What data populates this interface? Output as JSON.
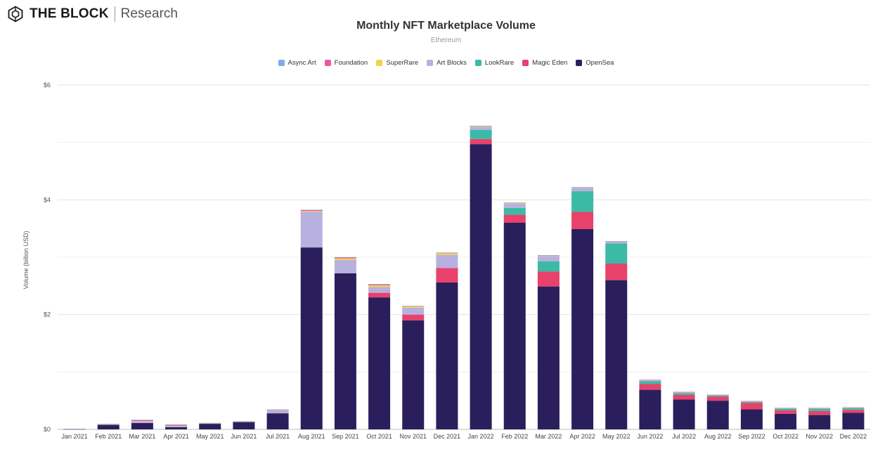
{
  "brand": {
    "name": "THE BLOCK",
    "sub": "Research"
  },
  "chart_data": {
    "type": "bar",
    "stacked": true,
    "title": "Monthly NFT Marketplace Volume",
    "subtitle": "Ethereum",
    "xlabel": "",
    "ylabel": "Volume (billion USD)",
    "ylim": [
      0,
      6
    ],
    "yticks": [
      0,
      2,
      4,
      6
    ],
    "ytick_labels": [
      "$0",
      "$2",
      "$4",
      "$6"
    ],
    "grid": true,
    "legend_position": "top-center",
    "legend_order": [
      "Async Art",
      "Foundation",
      "SuperRare",
      "Art Blocks",
      "LookRare",
      "Magic Eden",
      "OpenSea"
    ],
    "categories": [
      "Jan 2021",
      "Feb 2021",
      "Mar 2021",
      "Apr 2021",
      "May 2021",
      "Jun 2021",
      "Jul 2021",
      "Aug 2021",
      "Sep 2021",
      "Oct 2021",
      "Nov 2021",
      "Dec 2021",
      "Jan 2022",
      "Feb 2022",
      "Mar 2022",
      "Apr 2022",
      "May 2022",
      "Jun 2022",
      "Jul 2022",
      "Aug 2022",
      "Sep 2022",
      "Oct 2022",
      "Nov 2022",
      "Dec 2022"
    ],
    "series": [
      {
        "name": "OpenSea",
        "color": "#2a1f5c",
        "values": [
          0.005,
          0.08,
          0.11,
          0.04,
          0.1,
          0.13,
          0.28,
          3.17,
          2.72,
          2.3,
          1.9,
          2.56,
          4.97,
          3.6,
          2.49,
          3.49,
          2.6,
          0.69,
          0.52,
          0.5,
          0.35,
          0.27,
          0.25,
          0.29
        ]
      },
      {
        "name": "Magic Eden",
        "color": "#e8416b",
        "values": [
          0,
          0,
          0,
          0,
          0,
          0,
          0,
          0,
          0,
          0.08,
          0.1,
          0.25,
          0.09,
          0.14,
          0.26,
          0.3,
          0.29,
          0.1,
          0.08,
          0.07,
          0.11,
          0.06,
          0.07,
          0.05
        ]
      },
      {
        "name": "LookRare",
        "color": "#3bbaa6",
        "values": [
          0,
          0,
          0,
          0,
          0,
          0,
          0,
          0,
          0,
          0,
          0,
          0,
          0.16,
          0.12,
          0.18,
          0.36,
          0.35,
          0.05,
          0.03,
          0.02,
          0.02,
          0.03,
          0.04,
          0.03
        ]
      },
      {
        "name": "Art Blocks",
        "color": "#b8b0de",
        "values": [
          0,
          0.005,
          0.03,
          0.02,
          0.003,
          0.003,
          0.05,
          0.62,
          0.23,
          0.1,
          0.12,
          0.23,
          0.05,
          0.07,
          0.09,
          0.06,
          0.03,
          0.02,
          0.02,
          0.01,
          0.01,
          0.01,
          0.01,
          0.01
        ]
      },
      {
        "name": "SuperRare",
        "color": "#f3d24a",
        "values": [
          0,
          0.003,
          0.006,
          0.004,
          0.003,
          0.003,
          0.006,
          0.015,
          0.03,
          0.03,
          0.02,
          0.03,
          0.01,
          0.01,
          0.01,
          0.005,
          0.005,
          0.002,
          0.002,
          0.002,
          0.002,
          0.002,
          0.002,
          0.002
        ]
      },
      {
        "name": "Foundation",
        "color": "#e85aa0",
        "values": [
          0,
          0.005,
          0.02,
          0.02,
          0.005,
          0.005,
          0.01,
          0.02,
          0.02,
          0.02,
          0.01,
          0.01,
          0.01,
          0.01,
          0.005,
          0.005,
          0.005,
          0.002,
          0.002,
          0.002,
          0.002,
          0.002,
          0.002,
          0.002
        ]
      },
      {
        "name": "Async Art",
        "color": "#7aaee8",
        "values": [
          0,
          0.001,
          0.001,
          0.001,
          0.001,
          0.001,
          0.001,
          0.002,
          0.002,
          0.001,
          0.001,
          0.001,
          0.001,
          0.001,
          0.001,
          0.001,
          0.001,
          0,
          0,
          0,
          0,
          0,
          0,
          0
        ]
      }
    ]
  }
}
